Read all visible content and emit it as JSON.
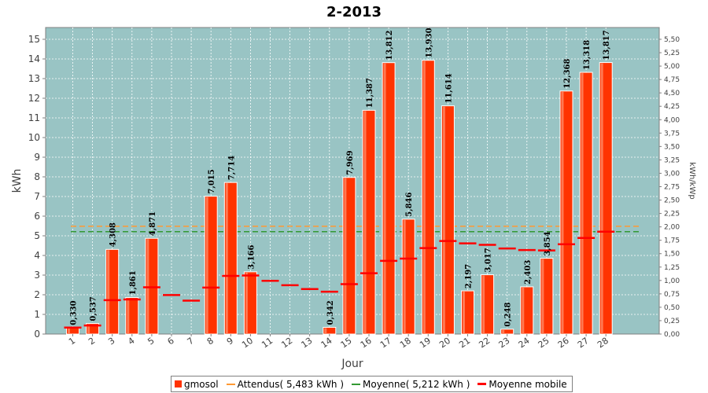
{
  "chart_data": {
    "type": "bar",
    "title": "2-2013",
    "xlabel": "Jour",
    "ylabel": "kWh",
    "y2label": "kWh/kWp",
    "ylim": [
      0,
      15.6
    ],
    "y2lim": [
      0,
      5.72
    ],
    "categories": [
      "1",
      "2",
      "3",
      "4",
      "5",
      "6",
      "7",
      "8",
      "9",
      "10",
      "11",
      "12",
      "13",
      "14",
      "15",
      "16",
      "17",
      "18",
      "19",
      "20",
      "21",
      "22",
      "23",
      "24",
      "25",
      "26",
      "27",
      "28"
    ],
    "yticks": [
      "0",
      "1",
      "2",
      "3",
      "4",
      "5",
      "6",
      "7",
      "8",
      "9",
      "10",
      "11",
      "12",
      "13",
      "14",
      "15"
    ],
    "y2ticks": [
      "0,00",
      "0,25",
      "0,50",
      "0,75",
      "1,00",
      "1,25",
      "1,50",
      "1,75",
      "2,00",
      "2,25",
      "2,50",
      "2,75",
      "3,00",
      "3,25",
      "3,50",
      "3,75",
      "4,00",
      "4,25",
      "4,50",
      "4,75",
      "5,00",
      "5,25",
      "5,50"
    ],
    "series": [
      {
        "name": "gmosol",
        "values": [
          0.33,
          0.537,
          4.308,
          1.861,
          4.871,
          0,
          0,
          7.015,
          7.714,
          3.166,
          0,
          0,
          0,
          0.342,
          7.969,
          11.387,
          13.812,
          5.846,
          13.93,
          11.614,
          2.197,
          3.017,
          0.248,
          2.403,
          3.854,
          12.368,
          13.318,
          13.817
        ],
        "labels": [
          "0,330",
          "0,537",
          "4,308",
          "1,861",
          "4,871",
          "",
          "",
          "7,015",
          "7,714",
          "3,166",
          "",
          "",
          "",
          "0,342",
          "7,969",
          "11,387",
          "13,812",
          "5,846",
          "13,930",
          "11,614",
          "2,197",
          "3,017",
          "0,248",
          "2,403",
          "3,854",
          "12,368",
          "13,318",
          "13,817"
        ]
      },
      {
        "name": "Moyenne mobile",
        "values": [
          0.33,
          0.434,
          1.725,
          1.759,
          2.381,
          1.984,
          1.701,
          2.365,
          2.959,
          2.98,
          2.709,
          2.483,
          2.292,
          2.153,
          2.541,
          3.094,
          3.724,
          3.842,
          4.373,
          4.735,
          4.614,
          4.541,
          4.354,
          4.273,
          4.256,
          4.568,
          4.892,
          5.21
        ]
      }
    ],
    "reference_lines": [
      {
        "name": "Attendus( 5,483 kWh )",
        "value": 5.483,
        "color": "#ff9933"
      },
      {
        "name": "Moyenne( 5,212 kWh )",
        "value": 5.212,
        "color": "#339933"
      }
    ],
    "colors": {
      "bar": "#ff3300",
      "plot_bg": "#99c4c4",
      "grid": "#ffffff",
      "moving_avg": "#ff0000"
    },
    "grid": true,
    "legend_position": "bottom"
  },
  "legend": {
    "items": [
      {
        "label": "gmosol"
      },
      {
        "label": "Attendus( 5,483 kWh )"
      },
      {
        "label": "Moyenne( 5,212 kWh )"
      },
      {
        "label": "Moyenne mobile"
      }
    ]
  }
}
